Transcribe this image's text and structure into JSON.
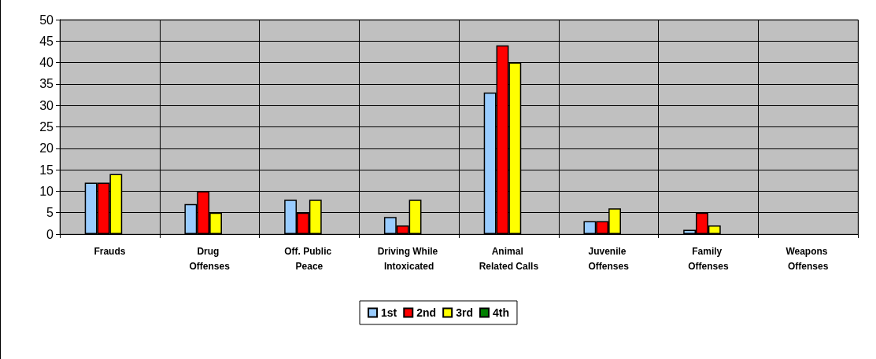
{
  "chart_data": {
    "type": "bar",
    "categories": [
      "Frauds",
      "Drug Offenses",
      "Off. Public Peace",
      "Driving While Intoxicated",
      "Animal Related Calls",
      "Juvenile Offenses",
      "Family Offenses",
      "Weapons Offenses"
    ],
    "series": [
      {
        "name": "1st",
        "color": "#99ccff",
        "values": [
          12,
          7,
          8,
          4,
          33,
          3,
          1,
          null
        ]
      },
      {
        "name": "2nd",
        "color": "#ff0000",
        "values": [
          12,
          10,
          5,
          2,
          44,
          3,
          5,
          null
        ]
      },
      {
        "name": "3rd",
        "color": "#ffff00",
        "values": [
          14,
          5,
          8,
          8,
          40,
          6,
          2,
          null
        ]
      },
      {
        "name": "4th",
        "color": "#008000",
        "values": [
          null,
          null,
          null,
          null,
          null,
          null,
          null,
          null
        ]
      }
    ],
    "ylim": [
      0,
      50
    ],
    "yticks": [
      0,
      5,
      10,
      15,
      20,
      25,
      30,
      35,
      40,
      45,
      50
    ],
    "grid": true,
    "legend": "bottom"
  }
}
